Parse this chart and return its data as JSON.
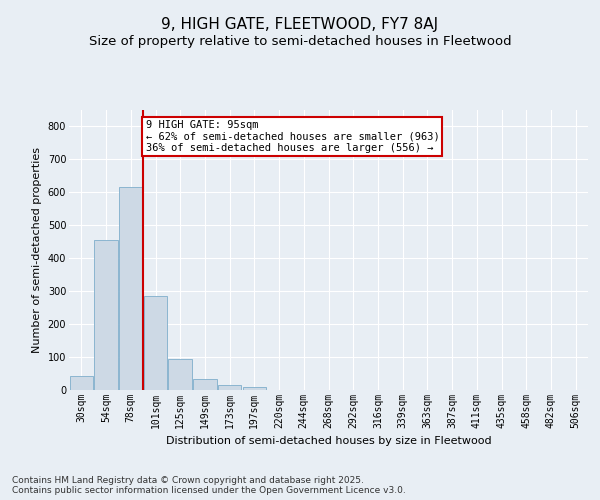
{
  "title": "9, HIGH GATE, FLEETWOOD, FY7 8AJ",
  "subtitle": "Size of property relative to semi-detached houses in Fleetwood",
  "xlabel": "Distribution of semi-detached houses by size in Fleetwood",
  "ylabel": "Number of semi-detached properties",
  "categories": [
    "30sqm",
    "54sqm",
    "78sqm",
    "101sqm",
    "125sqm",
    "149sqm",
    "173sqm",
    "197sqm",
    "220sqm",
    "244sqm",
    "268sqm",
    "292sqm",
    "316sqm",
    "339sqm",
    "363sqm",
    "387sqm",
    "411sqm",
    "435sqm",
    "458sqm",
    "482sqm",
    "506sqm"
  ],
  "values": [
    42,
    455,
    615,
    285,
    93,
    33,
    15,
    8,
    0,
    0,
    0,
    0,
    0,
    0,
    0,
    0,
    0,
    0,
    0,
    0,
    0
  ],
  "bar_color": "#cdd9e5",
  "bar_edge_color": "#7faecb",
  "subject_line_color": "#cc0000",
  "annotation_text": "9 HIGH GATE: 95sqm\n← 62% of semi-detached houses are smaller (963)\n36% of semi-detached houses are larger (556) →",
  "annotation_box_color": "#cc0000",
  "ylim": [
    0,
    850
  ],
  "yticks": [
    0,
    100,
    200,
    300,
    400,
    500,
    600,
    700,
    800
  ],
  "footer": "Contains HM Land Registry data © Crown copyright and database right 2025.\nContains public sector information licensed under the Open Government Licence v3.0.",
  "bg_color": "#e8eef4",
  "plot_bg_color": "#e8eef4",
  "grid_color": "#ffffff",
  "title_fontsize": 11,
  "subtitle_fontsize": 9.5,
  "label_fontsize": 8,
  "tick_fontsize": 7,
  "footer_fontsize": 6.5,
  "annotation_fontsize": 7.5
}
